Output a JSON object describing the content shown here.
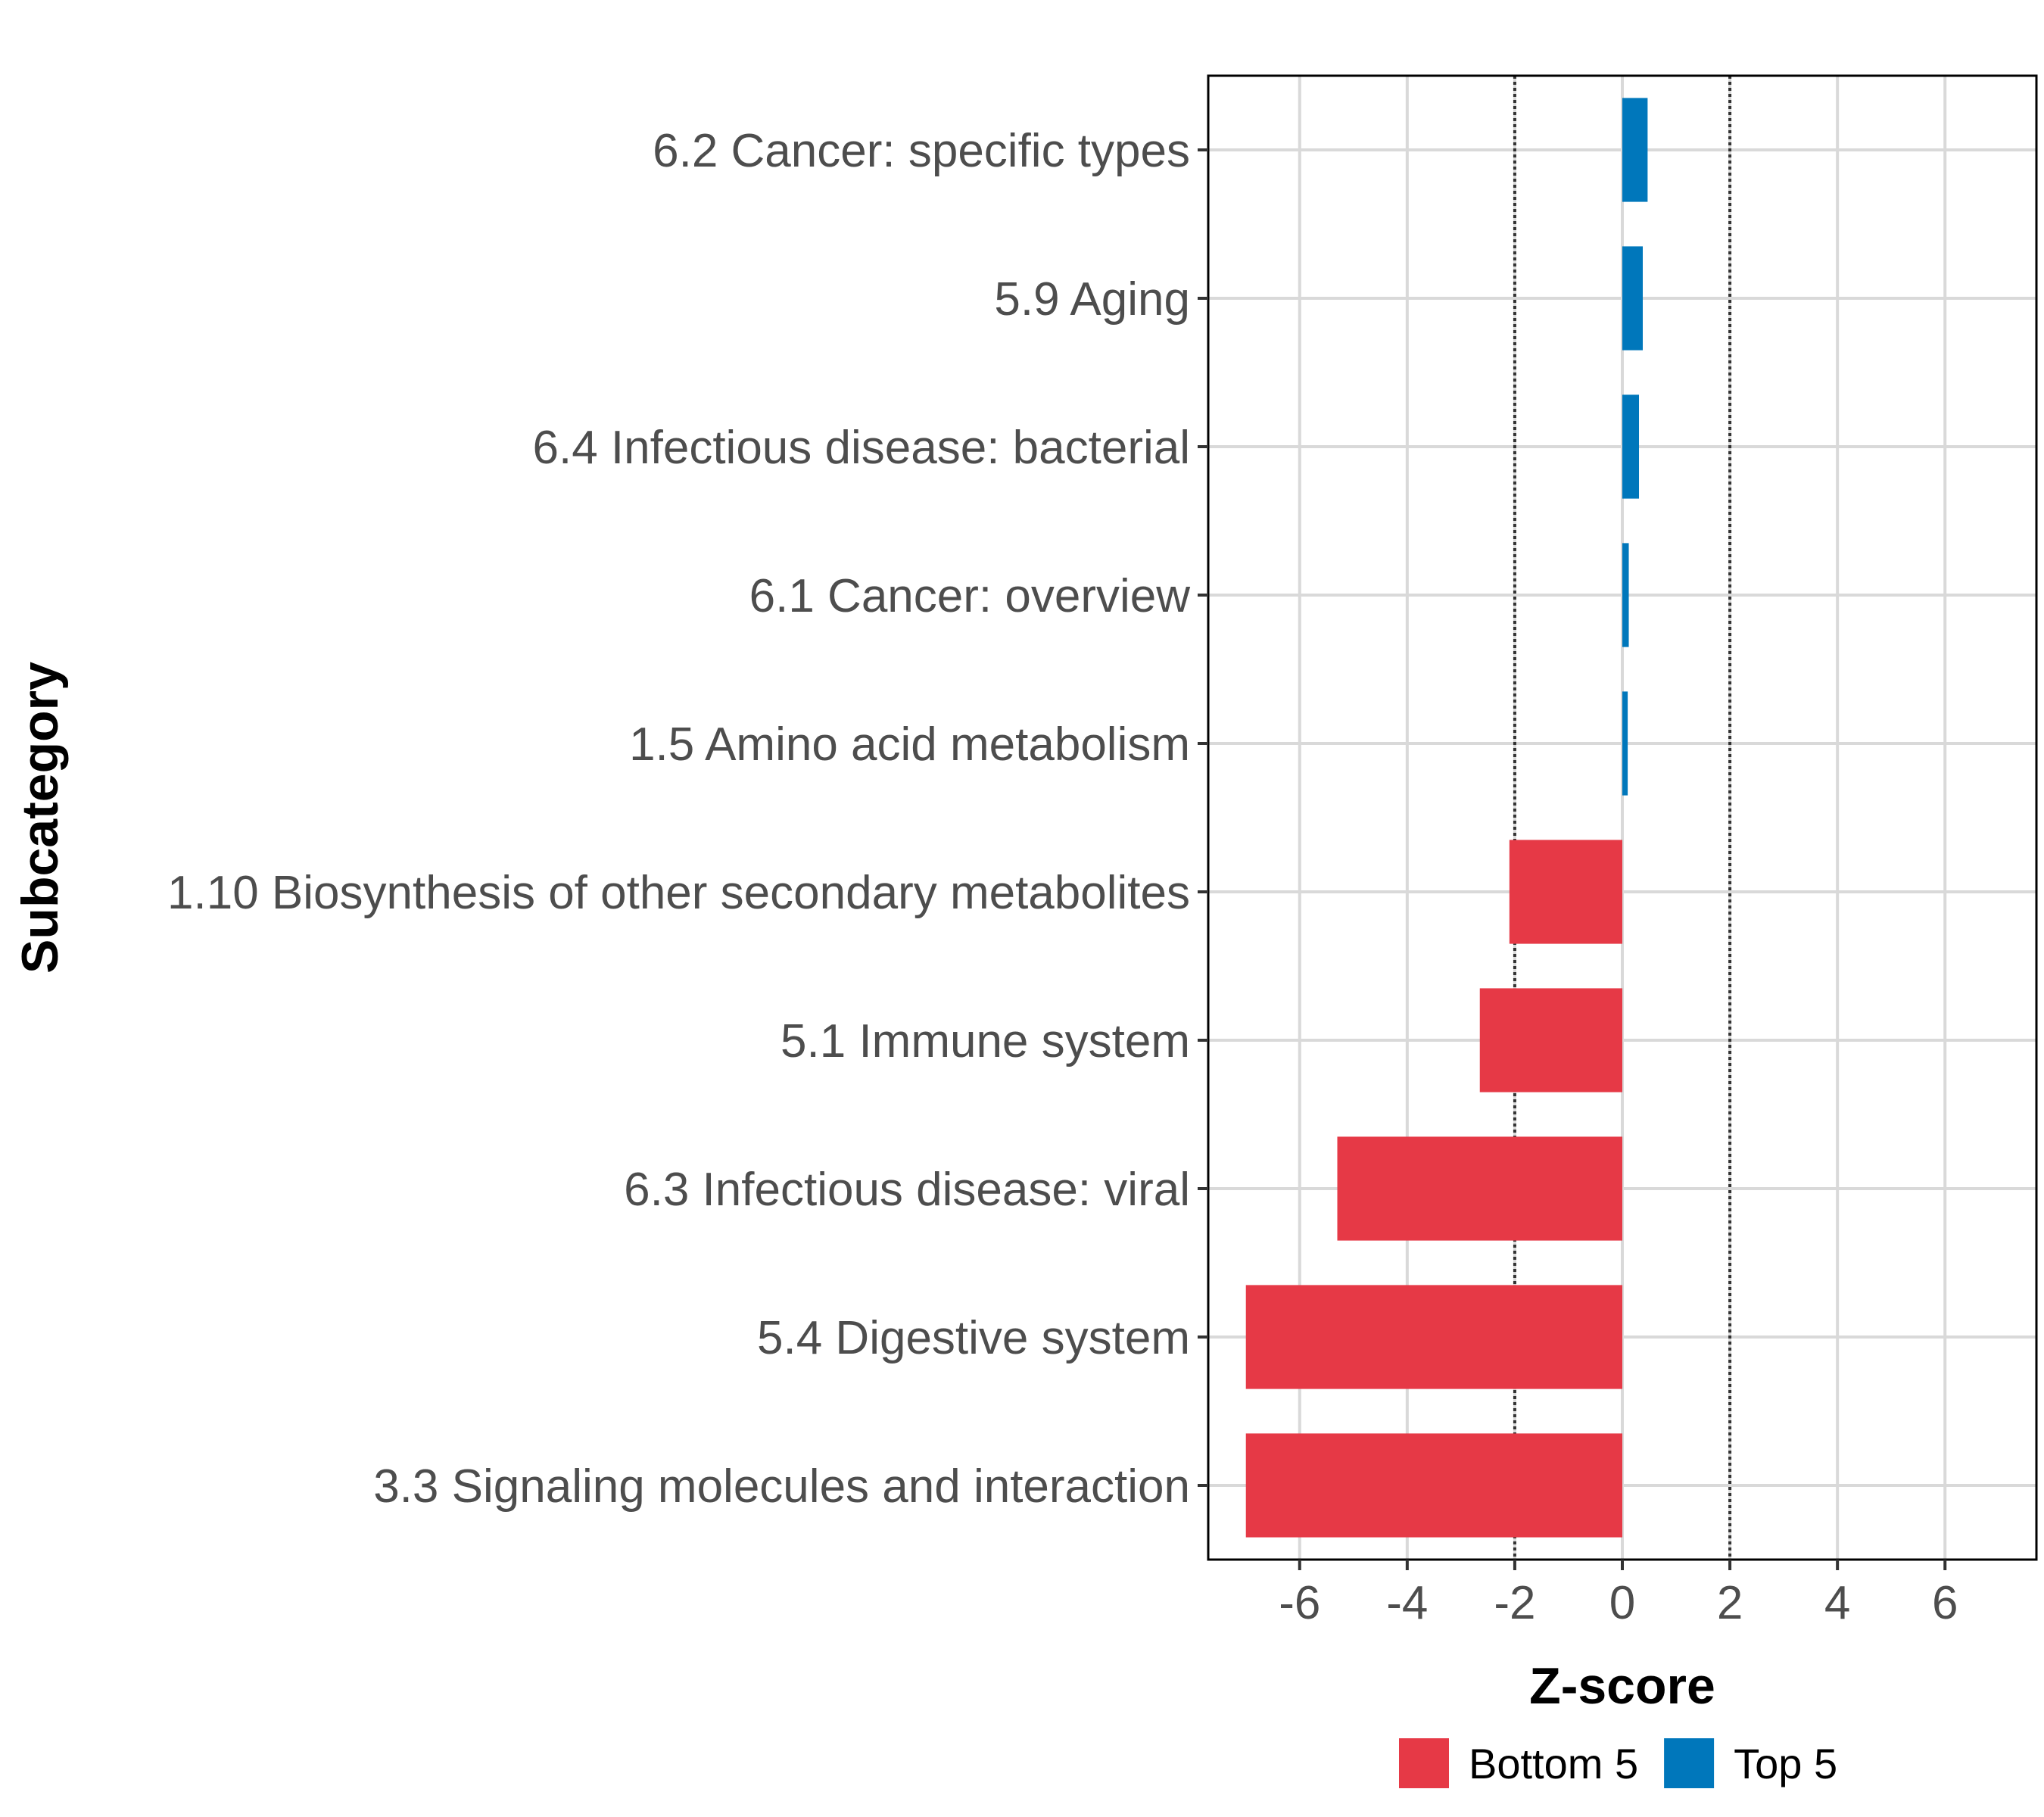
{
  "chart_data": {
    "type": "bar",
    "orientation": "horizontal",
    "categories": [
      "6.2 Cancer: specific types",
      "5.9 Aging",
      "6.4 Infectious disease: bacterial",
      "6.1 Cancer: overview",
      "1.5 Amino acid metabolism",
      "1.10 Biosynthesis of other secondary metabolites",
      "5.1 Immune system",
      "6.3 Infectious disease: viral",
      "5.4 Digestive system",
      "3.3 Signaling molecules and interaction"
    ],
    "values": [
      0.47,
      0.38,
      0.31,
      0.12,
      0.1,
      -2.1,
      -2.65,
      -5.3,
      -7.0,
      -7.0
    ],
    "groups": [
      "Top 5",
      "Top 5",
      "Top 5",
      "Top 5",
      "Top 5",
      "Bottom 5",
      "Bottom 5",
      "Bottom 5",
      "Bottom 5",
      "Bottom 5"
    ],
    "xlabel": "Z-score",
    "ylabel": "Subcategory",
    "xlim": [
      -7.7,
      7.7
    ],
    "xticks": [
      -6,
      -4,
      -2,
      0,
      2,
      4,
      6
    ],
    "xtick_labels": [
      "-6",
      "-4",
      "-2",
      "0",
      "2",
      "4",
      "6"
    ],
    "reference_lines": [
      -2,
      2
    ],
    "grid": true,
    "legend": {
      "position": "bottom",
      "entries": [
        {
          "label": "Bottom 5",
          "color": "#e63946"
        },
        {
          "label": "Top 5",
          "color": "#0077bb"
        }
      ]
    },
    "colors": {
      "Bottom 5": "#e63946",
      "Top 5": "#0077bb"
    }
  }
}
